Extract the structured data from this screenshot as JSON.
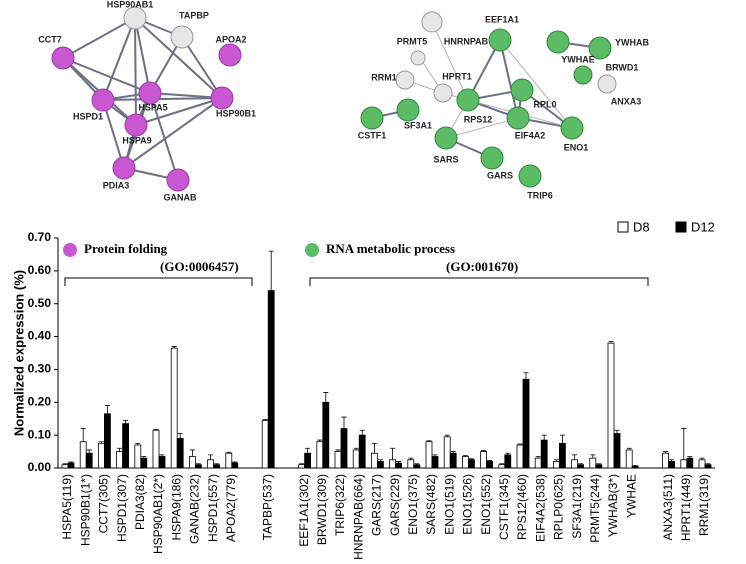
{
  "networks": [
    {
      "nodes": [
        "HSP90AB1",
        "TAPBP",
        "APOA2",
        "CCT7",
        "HSPA5",
        "HSPD1",
        "HSP90B1",
        "HSPA9",
        "PDIA3",
        "GANAB"
      ]
    },
    {
      "nodes": [
        "PRMT5",
        "HNRNPAB",
        "EEF1A1",
        "YWHAE",
        "YWHAB",
        "BRWD1",
        "ANXA3",
        "RRM1",
        "HPRT1",
        "RPS12",
        "RPL0",
        "EIF4A2",
        "ENO1",
        "CSTF1",
        "SF3A1",
        "SARS",
        "GARS",
        "TRIP6"
      ]
    }
  ],
  "chart_data": {
    "type": "bar",
    "ylabel": "Normalized expression (%)",
    "annotations": [
      "Protein folding",
      "(GO:0006457)",
      "RNA metabolic process",
      "(GO:001670)"
    ],
    "categories": [
      "HSPA5(119)",
      "HSP90B1(1*)",
      "CCT7(305)",
      "HSPD1(307)",
      "PDIA3(82)",
      "HSP90AB1(2*)",
      "HSPA9(186)",
      "GANAB(232)",
      "HSPD1(557)",
      "APOA2(779)",
      "TAPBP(537)",
      "EEF1A1(302)",
      "BRWD1(309)",
      "TRIP6(322)",
      "HNRNPAB(664)",
      "GARS(217)",
      "GARS(229)",
      "ENO1(375)",
      "SARS(482)",
      "ENO1(519)",
      "ENO1(526)",
      "ENO1(552)",
      "CSTF1(345)",
      "RPS12(460)",
      "EIF4A2(538)",
      "RPLP0(625)",
      "SF3A1(219)",
      "PRMT5(244)",
      "YWHAB(3*)",
      "YWHAE",
      "ANXA3(511)",
      "HPRT1(449)",
      "RRM1(319)"
    ],
    "series": [
      {
        "name": "D8",
        "color": "#ffffff",
        "values": [
          0.01,
          0.08,
          0.075,
          0.05,
          0.07,
          0.115,
          0.365,
          0.035,
          0.025,
          0.045,
          0.145,
          0.01,
          0.08,
          0.05,
          0.055,
          0.045,
          0.025,
          0.025,
          0.08,
          0.095,
          0.035,
          0.05,
          0.01,
          0.07,
          0.03,
          0.02,
          0.025,
          0.03,
          0.38,
          0.055,
          0.045,
          0.025,
          0.025
        ],
        "errors": [
          0.003,
          0.04,
          0.005,
          0.01,
          0.005,
          0.003,
          0.005,
          0.02,
          0.015,
          0.003,
          0.003,
          0.003,
          0.005,
          0.005,
          0.005,
          0.03,
          0.035,
          0.005,
          0.003,
          0.005,
          0.003,
          0.003,
          0.003,
          0.003,
          0.005,
          0.005,
          0.015,
          0.01,
          0.005,
          0.005,
          0.005,
          0.095,
          0.005
        ]
      },
      {
        "name": "D12",
        "color": "#000000",
        "values": [
          0.015,
          0.045,
          0.165,
          0.135,
          0.03,
          0.035,
          0.09,
          0.01,
          0.01,
          0.015,
          0.54,
          0.045,
          0.2,
          0.12,
          0.1,
          0.02,
          0.015,
          0.01,
          0.035,
          0.045,
          0.025,
          0.02,
          0.04,
          0.27,
          0.085,
          0.075,
          0.01,
          0.01,
          0.105,
          0.005,
          0.02,
          0.03,
          0.01
        ],
        "errors": [
          0.003,
          0.01,
          0.025,
          0.01,
          0.005,
          0.005,
          0.015,
          0.003,
          0.003,
          0.003,
          0.12,
          0.015,
          0.03,
          0.035,
          0.015,
          0.005,
          0.005,
          0.003,
          0.005,
          0.005,
          0.003,
          0.003,
          0.005,
          0.02,
          0.015,
          0.025,
          0.003,
          0.003,
          0.01,
          0.003,
          0.005,
          0.005,
          0.003
        ]
      }
    ],
    "ylim": [
      0,
      0.7
    ],
    "yticks": [
      {
        "value": 0,
        "label": "0.00"
      },
      {
        "value": 0.1,
        "label": "0.10"
      },
      {
        "value": 0.2,
        "label": "0.20"
      },
      {
        "value": 0.3,
        "label": "0.30"
      },
      {
        "value": 0.4,
        "label": "0.40"
      },
      {
        "value": 0.5,
        "label": "0.50"
      },
      {
        "value": 0.6,
        "label": "0.60"
      },
      {
        "value": 0.7,
        "label": "0.70"
      }
    ],
    "legend": "top-right"
  }
}
